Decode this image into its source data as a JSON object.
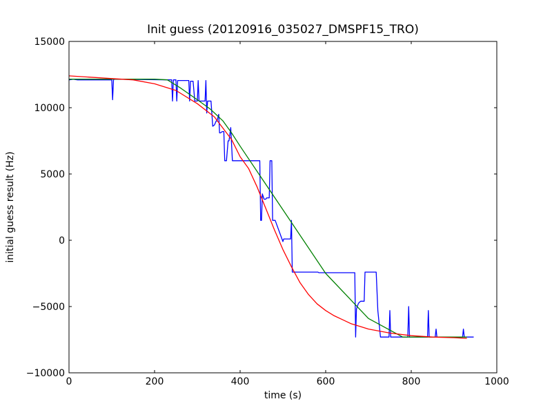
{
  "chart_data": {
    "type": "line",
    "title": "Init guess (20120916_035027_DMSPF15_TRO)",
    "xlabel": "time (s)",
    "ylabel": "initial guess result (Hz)",
    "xlim": [
      0,
      1000
    ],
    "ylim": [
      -10000,
      15000
    ],
    "x_ticks": [
      0,
      200,
      400,
      600,
      800,
      1000
    ],
    "x_tick_labels": [
      "0",
      "200",
      "400",
      "600",
      "800",
      "1000"
    ],
    "y_ticks": [
      -10000,
      -5000,
      0,
      5000,
      10000,
      15000
    ],
    "y_tick_labels": [
      "−10000",
      "−5000",
      "0",
      "5000",
      "10000",
      "15000"
    ],
    "grid": false,
    "legend": "none",
    "series": [
      {
        "color": "#0000ff",
        "x": [
          0,
          10,
          20,
          100,
          102,
          104,
          106,
          240,
          242,
          244,
          246,
          250,
          252,
          254,
          280,
          282,
          284,
          290,
          294,
          296,
          300,
          302,
          304,
          318,
          320,
          322,
          324,
          328,
          330,
          332,
          336,
          340,
          344,
          346,
          350,
          352,
          354,
          358,
          362,
          364,
          368,
          372,
          374,
          378,
          382,
          386,
          388,
          392,
          396,
          400,
          402,
          404,
          406,
          446,
          448,
          450,
          452,
          456,
          458,
          460,
          462,
          468,
          470,
          474,
          476,
          478,
          480,
          482,
          500,
          502,
          504,
          506,
          518,
          520,
          522,
          524,
          580,
          582,
          584,
          666,
          668,
          670,
          672,
          676,
          678,
          682,
          690,
          692,
          696,
          716,
          718,
          722,
          728,
          730,
          748,
          750,
          752,
          754,
          756,
          790,
          792,
          794,
          796,
          836,
          838,
          840,
          842,
          854,
          856,
          858,
          860,
          918,
          920,
          922,
          924,
          946
        ],
        "y": [
          12100,
          12150,
          12100,
          12100,
          10600,
          12100,
          12150,
          12100,
          10500,
          12100,
          12100,
          12100,
          10500,
          12050,
          12050,
          10500,
          12000,
          12000,
          10500,
          10500,
          10500,
          12050,
          10500,
          10500,
          12050,
          9600,
          10500,
          10500,
          10500,
          10500,
          8600,
          8700,
          9000,
          9000,
          9500,
          8100,
          8100,
          8200,
          8200,
          6000,
          6000,
          7500,
          7500,
          8500,
          6000,
          6000,
          6000,
          6000,
          6000,
          6000,
          6000,
          6000,
          6000,
          6000,
          1500,
          1500,
          3500,
          3100,
          3100,
          3100,
          3200,
          3200,
          6000,
          6000,
          1500,
          1500,
          1500,
          1500,
          -100,
          100,
          100,
          100,
          100,
          1500,
          -2400,
          -2400,
          -2400,
          -2400,
          -2450,
          -2450,
          -2450,
          -7300,
          -5200,
          -4800,
          -4700,
          -4600,
          -4600,
          -2400,
          -2400,
          -2400,
          -2400,
          -5300,
          -7300,
          -7300,
          -7300,
          -5300,
          -7300,
          -7300,
          -7300,
          -7300,
          -7300,
          -5000,
          -7300,
          -7300,
          -7300,
          -5300,
          -7300,
          -7300,
          -7300,
          -6700,
          -7300,
          -7300,
          -7300,
          -6700,
          -7300,
          -7300
        ]
      },
      {
        "color": "#008000",
        "x": [
          0,
          100,
          150,
          200,
          230,
          260,
          300,
          330,
          360,
          380,
          400,
          500,
          600,
          700,
          780,
          822,
          930
        ],
        "y": [
          12150,
          12150,
          12150,
          12150,
          12100,
          11500,
          10600,
          9900,
          9000,
          8100,
          7100,
          2300,
          -2500,
          -5900,
          -7300,
          -7300,
          -7300
        ]
      },
      {
        "color": "#ff0000",
        "x": [
          0,
          50,
          100,
          150,
          200,
          250,
          300,
          340,
          380,
          400,
          420,
          440,
          460,
          480,
          500,
          520,
          540,
          560,
          580,
          600,
          620,
          640,
          660,
          680,
          700,
          750,
          800,
          850,
          900,
          930
        ],
        "y": [
          12400,
          12300,
          12200,
          12100,
          11800,
          11300,
          10300,
          9300,
          7600,
          6300,
          5400,
          4000,
          2400,
          800,
          -700,
          -2000,
          -3200,
          -4100,
          -4800,
          -5300,
          -5700,
          -6000,
          -6300,
          -6500,
          -6700,
          -7000,
          -7200,
          -7300,
          -7350,
          -7400
        ]
      }
    ]
  }
}
